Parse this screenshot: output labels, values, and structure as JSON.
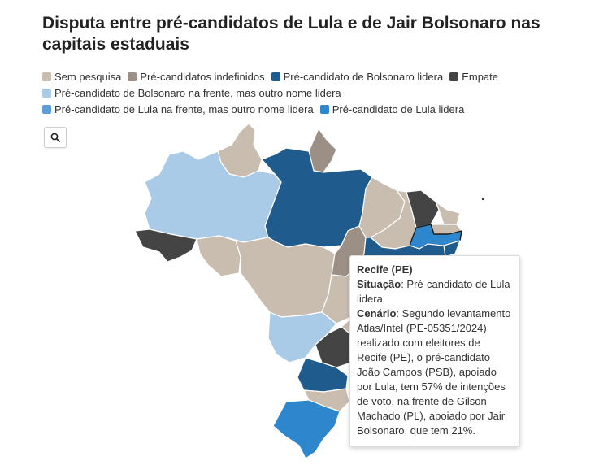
{
  "title": "Disputa entre pré-candidatos de Lula e de Jair Bolsonaro nas capitais estaduais",
  "legend": {
    "rows": [
      [
        {
          "label": "Sem pesquisa",
          "color": "#c9bdb0"
        },
        {
          "label": "Pré-candidatos indefinidos",
          "color": "#9c8f86"
        },
        {
          "label": "Pré-candidato de Bolsonaro lidera",
          "color": "#1f5b8c"
        },
        {
          "label": "Empate",
          "color": "#444444"
        }
      ],
      [
        {
          "label": "Pré-candidato de Bolsonaro na frente, mas outro nome lidera",
          "color": "#a9cbe8"
        }
      ],
      [
        {
          "label": "Pré-candidato de Lula na frente, mas outro nome lidera",
          "color": "#5d9ed6"
        },
        {
          "label": "Pré-candidato de Lula lidera",
          "color": "#2e86cc"
        }
      ]
    ]
  },
  "zoom": {
    "icon": "search-icon"
  },
  "states": [
    {
      "code": "RR",
      "category": "Sem pesquisa"
    },
    {
      "code": "AP",
      "category": "Pré-candidatos indefinidos"
    },
    {
      "code": "AM",
      "category": "Pré-candidato de Bolsonaro na frente, mas outro nome lidera"
    },
    {
      "code": "PA",
      "category": "Pré-candidato de Bolsonaro lidera"
    },
    {
      "code": "AC",
      "category": "Empate"
    },
    {
      "code": "RO",
      "category": "Sem pesquisa"
    },
    {
      "code": "MT",
      "category": "Sem pesquisa"
    },
    {
      "code": "TO",
      "category": "Pré-candidatos indefinidos"
    },
    {
      "code": "MA",
      "category": "Sem pesquisa"
    },
    {
      "code": "PI",
      "category": "Sem pesquisa"
    },
    {
      "code": "CE",
      "category": "Empate"
    },
    {
      "code": "RN",
      "category": "Sem pesquisa"
    },
    {
      "code": "PB",
      "category": "Sem pesquisa"
    },
    {
      "code": "PE",
      "category": "Pré-candidato de Lula lidera"
    },
    {
      "code": "BA",
      "category": "Pré-candidato de Bolsonaro lidera"
    },
    {
      "code": "GO",
      "category": "Sem pesquisa"
    },
    {
      "code": "MS",
      "category": "Pré-candidato de Bolsonaro na frente, mas outro nome lidera"
    },
    {
      "code": "MG",
      "category": "Sem pesquisa"
    },
    {
      "code": "SP",
      "category": "Empate"
    },
    {
      "code": "PR",
      "category": "Pré-candidato de Bolsonaro lidera"
    },
    {
      "code": "SC",
      "category": "Sem pesquisa"
    },
    {
      "code": "RS",
      "category": "Pré-candidato de Lula lidera"
    }
  ],
  "tooltip": {
    "title": "Recife (PE)",
    "situation_label": "Situação",
    "situation_value": "Pré-candidato de Lula lidera",
    "scenario_label": "Cenário",
    "scenario_value": "Segundo levantamento Atlas/Intel (PE-05351/2024) realizado com eleitores de Recife (PE), o pré-candidato João Campos (PSB), apoiado por Lula, tem 57% de intenções de voto, na frente de Gilson Machado (PL), apoiado por Jair Bolsonaro, que tem 21%."
  }
}
